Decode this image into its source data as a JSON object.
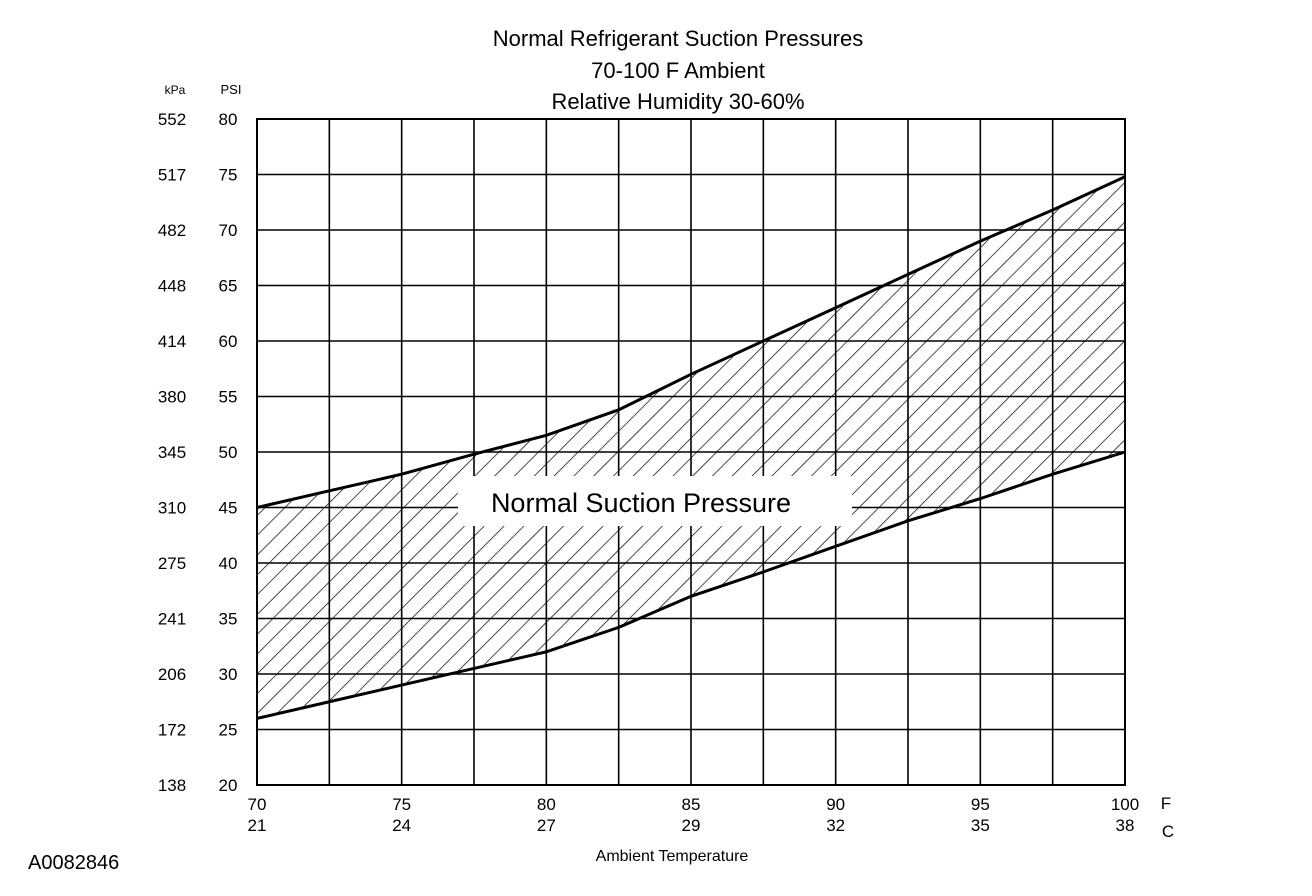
{
  "figure_id": "A0082846",
  "chart_data": {
    "type": "area",
    "title": "Normal  Refrigerant  Suction  Pressures",
    "subtitle_1": "70-100 F Ambient",
    "subtitle_2": "Relative Humidity 30-60%",
    "band_label": "Normal Suction Pressure",
    "xlabel": "Ambient Temperature",
    "x_unit_f": "F",
    "x_unit_c": "C",
    "y_unit_kpa": "kPa",
    "y_unit_psi": "PSI",
    "xlim": [
      70,
      100
    ],
    "ylim": [
      20,
      80
    ],
    "grid": true,
    "x_ticks": [
      {
        "f": "70",
        "c": "21"
      },
      {
        "f": "75",
        "c": "24"
      },
      {
        "f": "80",
        "c": "27"
      },
      {
        "f": "85",
        "c": "29"
      },
      {
        "f": "90",
        "c": "32"
      },
      {
        "f": "95",
        "c": "35"
      },
      {
        "f": "100",
        "c": "38"
      }
    ],
    "x_gridlines": [
      72.5,
      75,
      77.5,
      80,
      82.5,
      85,
      87.5,
      90,
      92.5,
      95,
      97.5
    ],
    "y_ticks": [
      {
        "psi": "80",
        "kpa": "552"
      },
      {
        "psi": "75",
        "kpa": "517"
      },
      {
        "psi": "70",
        "kpa": "482"
      },
      {
        "psi": "65",
        "kpa": "448"
      },
      {
        "psi": "60",
        "kpa": "414"
      },
      {
        "psi": "55",
        "kpa": "380"
      },
      {
        "psi": "50",
        "kpa": "345"
      },
      {
        "psi": "45",
        "kpa": "310"
      },
      {
        "psi": "40",
        "kpa": "275"
      },
      {
        "psi": "35",
        "kpa": "241"
      },
      {
        "psi": "30",
        "kpa": "206"
      },
      {
        "psi": "25",
        "kpa": "172"
      },
      {
        "psi": "20",
        "kpa": "138"
      }
    ],
    "series": [
      {
        "x": [
          70,
          72.5,
          75,
          77.5,
          80,
          82.5,
          85,
          87.5,
          90,
          92.5,
          95,
          97.5,
          100
        ],
        "y": [
          45,
          46.5,
          48,
          49.8,
          51.5,
          53.8,
          57,
          60,
          63,
          66,
          69,
          71.8,
          74.8
        ]
      },
      {
        "x": [
          70,
          72.5,
          75,
          77.5,
          80,
          82.5,
          85,
          87.5,
          90,
          92.5,
          95,
          97.5,
          100
        ],
        "y": [
          26,
          27.5,
          29,
          30.5,
          32,
          34.2,
          37,
          39.2,
          41.5,
          43.8,
          45.8,
          48,
          50
        ]
      }
    ]
  }
}
